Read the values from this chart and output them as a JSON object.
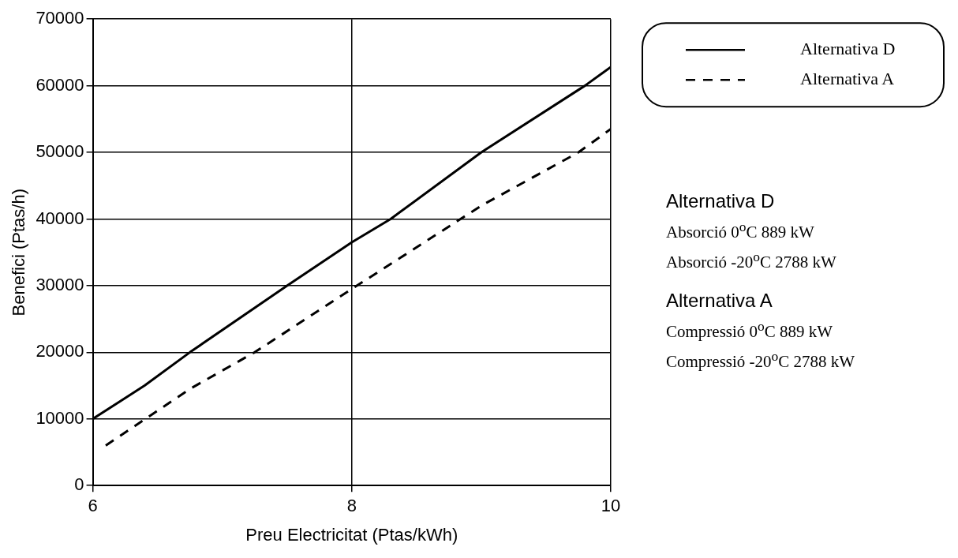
{
  "chart_data": {
    "type": "line",
    "xlabel": "Preu Electricitat (Ptas/kWh)",
    "ylabel": "Benefici (Ptas/h)",
    "xlim": [
      6,
      10
    ],
    "xticks": [
      6,
      8,
      10
    ],
    "ylim": [
      0,
      70000
    ],
    "yticks": [
      0,
      10000,
      20000,
      30000,
      40000,
      50000,
      60000,
      70000
    ],
    "grid": true,
    "legend": "top right",
    "marker": "none",
    "series": [
      {
        "name": "Alternativa D",
        "color": "#000000",
        "line_style": "solid",
        "x": [
          6,
          6.4,
          6.75,
          7.5,
          8,
          8.3,
          9,
          9.8,
          10
        ],
        "values": [
          10000,
          15000,
          20000,
          30000,
          36500,
          40000,
          50000,
          60000,
          62800
        ]
      },
      {
        "name": "Alternativa A",
        "color": "#000000",
        "line_style": "dashed",
        "x": [
          6.1,
          6.75,
          7.25,
          8,
          9,
          9.75,
          10
        ],
        "values": [
          6000,
          14500,
          20000,
          29500,
          42000,
          50000,
          53500
        ]
      }
    ],
    "annotations": [
      "Alternativa D",
      "Absorció 0$^{o}$C 889 kW",
      "Absorció -20$^{o}$C 2788 kW",
      "Alternativa A",
      "Compressió 0$^{o}$C 889 kW",
      "Compressió -20$^{o}$C 2788 kW"
    ]
  }
}
